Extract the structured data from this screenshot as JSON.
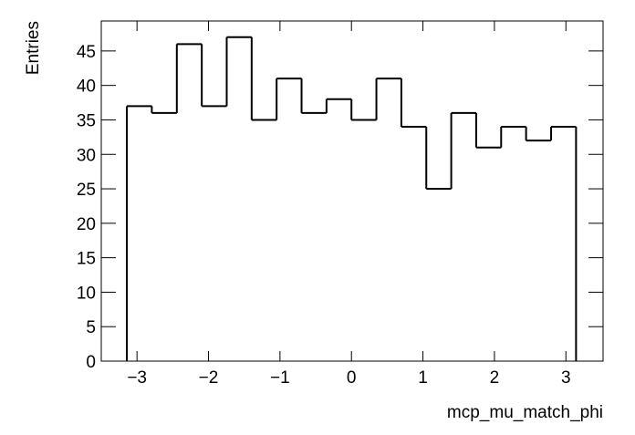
{
  "chart_data": {
    "type": "histogram",
    "x_label": "mcp_mu_match_phi",
    "y_label": "Entries",
    "bins": [
      -3.142,
      -2.793,
      -2.443,
      -2.094,
      -1.745,
      -1.396,
      -1.047,
      -0.698,
      -0.349,
      0,
      0.349,
      0.698,
      1.047,
      1.396,
      1.745,
      2.094,
      2.443,
      2.793,
      3.142
    ],
    "values": [
      37,
      36,
      46,
      37,
      47,
      35,
      41,
      36,
      38,
      35,
      41,
      34,
      25,
      36,
      31,
      34,
      32,
      34
    ],
    "color": "#000000",
    "xlim": [
      -3.5,
      3.52
    ],
    "ylim": [
      0,
      49.35
    ],
    "xticks": [
      {
        "value": -3,
        "label": "−3"
      },
      {
        "value": -2,
        "label": "−2"
      },
      {
        "value": -1,
        "label": "−1"
      },
      0,
      1,
      2,
      3
    ],
    "yticks": [
      0,
      5,
      10,
      15,
      20,
      25,
      30,
      35,
      40,
      45
    ]
  }
}
